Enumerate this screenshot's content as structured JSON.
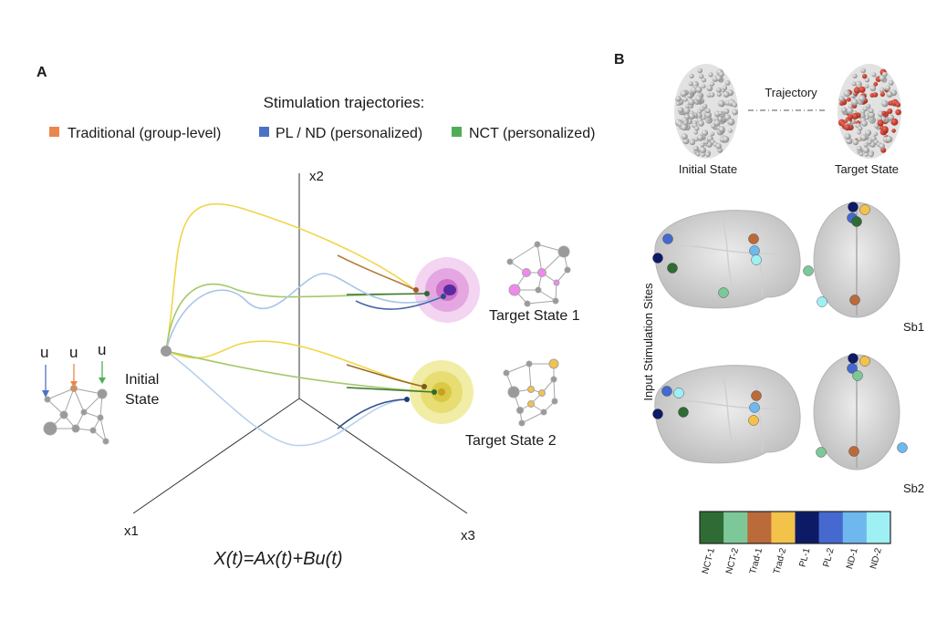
{
  "panel_a": {
    "label": "A",
    "legend_title": "Stimulation trajectories:",
    "legend": [
      {
        "label": "Traditional (group-level)",
        "color": "#e8884a"
      },
      {
        "label": "PL / ND (personalized)",
        "color": "#4a72c4"
      },
      {
        "label": "NCT (personalized)",
        "color": "#4fae55"
      }
    ],
    "axes": {
      "x1": "x1",
      "x2": "x2",
      "x3": "x3"
    },
    "initial_state": {
      "line1": "Initial",
      "line2": "State"
    },
    "input_labels": [
      "u",
      "u",
      "u"
    ],
    "input_colors": [
      "#4a72c4",
      "#e8884a",
      "#4fae55"
    ],
    "target_state_1": "Target State 1",
    "target_state_2": "Target State 2",
    "equation": "X(t)=Ax(t)+Bu(t)"
  },
  "panel_b": {
    "label": "B",
    "trajectory": "Trajectory",
    "initial_state": "Initial State",
    "target_state": "Target State",
    "side_label": "Input Stimulation Sites",
    "subject_1": "Sb1",
    "subject_2": "Sb2",
    "colorbar": [
      {
        "label": "NCT-1",
        "color": "#2f6c35"
      },
      {
        "label": "NCT-2",
        "color": "#7dc898"
      },
      {
        "label": "Trad-1",
        "color": "#bb6a3a"
      },
      {
        "label": "Trad-2",
        "color": "#f2c24a"
      },
      {
        "label": "PL-1",
        "color": "#0d1a66"
      },
      {
        "label": "PL-2",
        "color": "#4569cf"
      },
      {
        "label": "ND-1",
        "color": "#6eb8ee"
      },
      {
        "label": "ND-2",
        "color": "#9ef0f4"
      }
    ]
  }
}
